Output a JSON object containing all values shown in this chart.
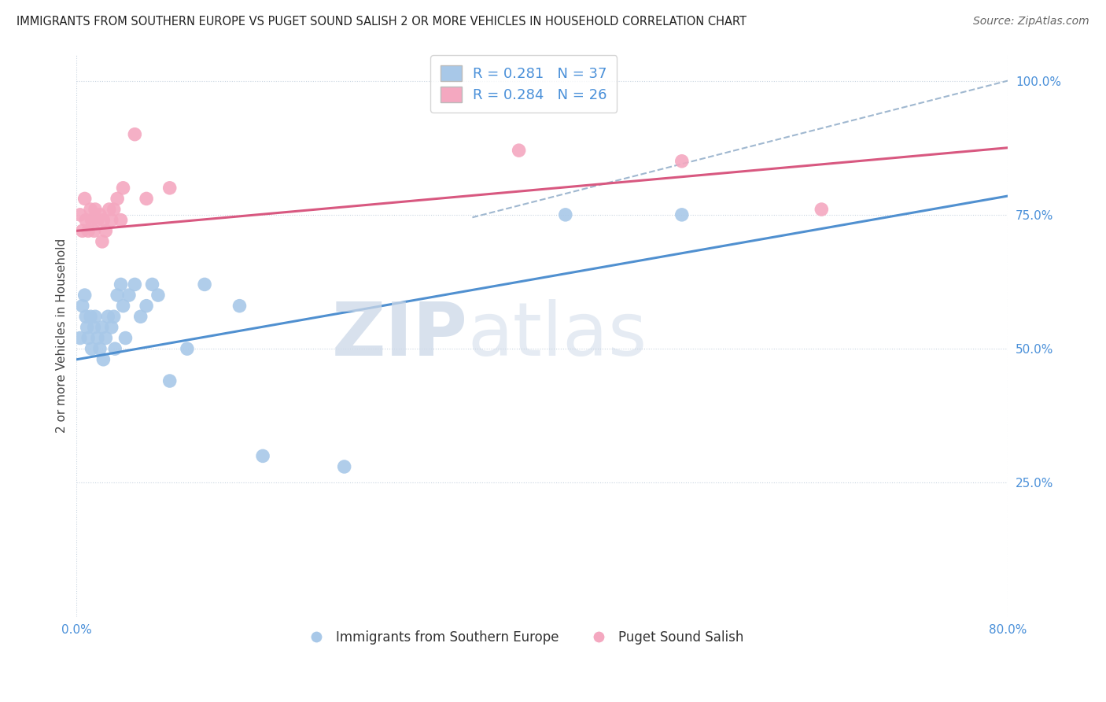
{
  "title": "IMMIGRANTS FROM SOUTHERN EUROPE VS PUGET SOUND SALISH 2 OR MORE VEHICLES IN HOUSEHOLD CORRELATION CHART",
  "source_text": "Source: ZipAtlas.com",
  "ylabel": "2 or more Vehicles in Household",
  "xlim": [
    0.0,
    0.8
  ],
  "ylim": [
    0.0,
    1.05
  ],
  "blue_R": 0.281,
  "blue_N": 37,
  "pink_R": 0.284,
  "pink_N": 26,
  "blue_color": "#a8c8e8",
  "pink_color": "#f4a8c0",
  "blue_line_color": "#5090d0",
  "pink_line_color": "#d85880",
  "dash_line_color": "#a0b8d0",
  "watermark_zip": "ZIP",
  "watermark_atlas": "atlas",
  "blue_line_x0": 0.0,
  "blue_line_y0": 0.48,
  "blue_line_x1": 0.8,
  "blue_line_y1": 0.785,
  "pink_line_x0": 0.0,
  "pink_line_y0": 0.72,
  "pink_line_x1": 0.8,
  "pink_line_y1": 0.875,
  "dash_line_x0": 0.34,
  "dash_line_y0": 0.745,
  "dash_line_x1": 0.8,
  "dash_line_y1": 1.0,
  "blue_scatter_x": [
    0.003,
    0.005,
    0.007,
    0.008,
    0.009,
    0.01,
    0.012,
    0.013,
    0.015,
    0.016,
    0.018,
    0.02,
    0.022,
    0.023,
    0.025,
    0.027,
    0.03,
    0.032,
    0.033,
    0.035,
    0.038,
    0.04,
    0.042,
    0.045,
    0.05,
    0.055,
    0.06,
    0.065,
    0.07,
    0.08,
    0.095,
    0.11,
    0.14,
    0.16,
    0.23,
    0.42,
    0.52
  ],
  "blue_scatter_y": [
    0.52,
    0.58,
    0.6,
    0.56,
    0.54,
    0.52,
    0.56,
    0.5,
    0.54,
    0.56,
    0.52,
    0.5,
    0.54,
    0.48,
    0.52,
    0.56,
    0.54,
    0.56,
    0.5,
    0.6,
    0.62,
    0.58,
    0.52,
    0.6,
    0.62,
    0.56,
    0.58,
    0.62,
    0.6,
    0.44,
    0.5,
    0.62,
    0.58,
    0.3,
    0.28,
    0.75,
    0.75
  ],
  "pink_scatter_x": [
    0.003,
    0.005,
    0.007,
    0.008,
    0.01,
    0.012,
    0.013,
    0.015,
    0.016,
    0.018,
    0.02,
    0.022,
    0.023,
    0.025,
    0.028,
    0.03,
    0.032,
    0.035,
    0.038,
    0.04,
    0.05,
    0.06,
    0.08,
    0.38,
    0.52,
    0.64
  ],
  "pink_scatter_y": [
    0.75,
    0.72,
    0.78,
    0.74,
    0.72,
    0.76,
    0.74,
    0.72,
    0.76,
    0.74,
    0.75,
    0.7,
    0.74,
    0.72,
    0.76,
    0.74,
    0.76,
    0.78,
    0.74,
    0.8,
    0.9,
    0.78,
    0.8,
    0.87,
    0.85,
    0.76
  ],
  "ytick_vals_right": [
    1.0,
    0.75,
    0.5,
    0.25
  ],
  "ytick_labels_right": [
    "100.0%",
    "75.0%",
    "50.0%",
    "25.0%"
  ]
}
